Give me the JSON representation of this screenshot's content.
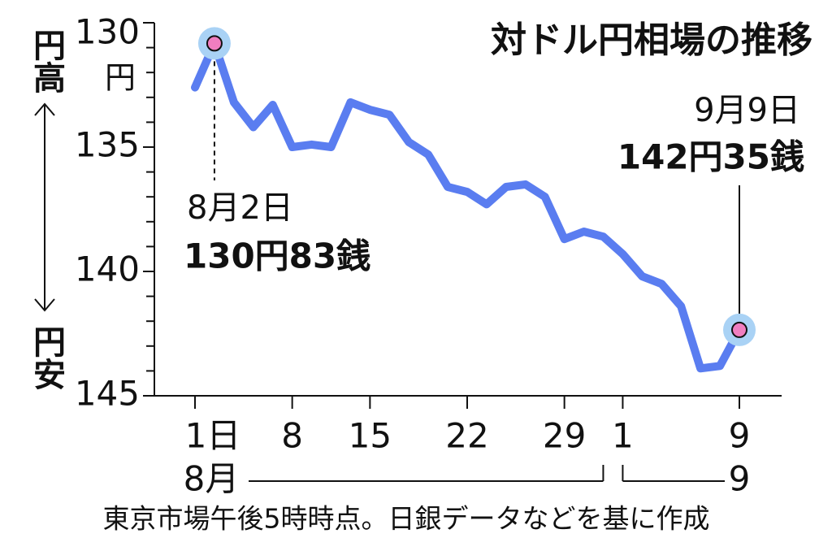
{
  "chart_data": {
    "type": "line",
    "title": "対ドル円相場の推移",
    "y_unit": "円",
    "y_high_label": "円高",
    "y_low_label": "円安",
    "categories": [
      "1日",
      null,
      null,
      null,
      null,
      "8",
      null,
      null,
      null,
      "15",
      null,
      null,
      null,
      null,
      "22",
      null,
      null,
      null,
      null,
      "29",
      null,
      null,
      "1",
      null,
      null,
      null,
      null,
      null,
      "9"
    ],
    "month_labels": [
      "8月",
      "9"
    ],
    "values": [
      132.6,
      130.83,
      133.2,
      134.2,
      133.3,
      135.0,
      134.9,
      135.0,
      133.2,
      133.5,
      133.7,
      134.8,
      135.3,
      136.6,
      136.8,
      137.3,
      136.6,
      136.5,
      137.0,
      138.7,
      138.4,
      138.6,
      139.3,
      140.2,
      140.5,
      141.4,
      143.9,
      143.8,
      142.35
    ],
    "color": "#5a7df0",
    "point_color": "#f07ec0",
    "halo_color": "#a9d2f5",
    "ylim": [
      130,
      145
    ],
    "y_inverted": true,
    "yticks": [
      130,
      135,
      140,
      145
    ],
    "minor_yticks": [
      131,
      132,
      133,
      134,
      136,
      137,
      138,
      139,
      141,
      142,
      143,
      144
    ],
    "annotations": [
      {
        "date": "8月2日",
        "label": "130円83銭"
      },
      {
        "date": "9月9日",
        "label": "142円35銭"
      }
    ],
    "note": "東京市場午後5時時点。日銀データなどを基に作成"
  }
}
